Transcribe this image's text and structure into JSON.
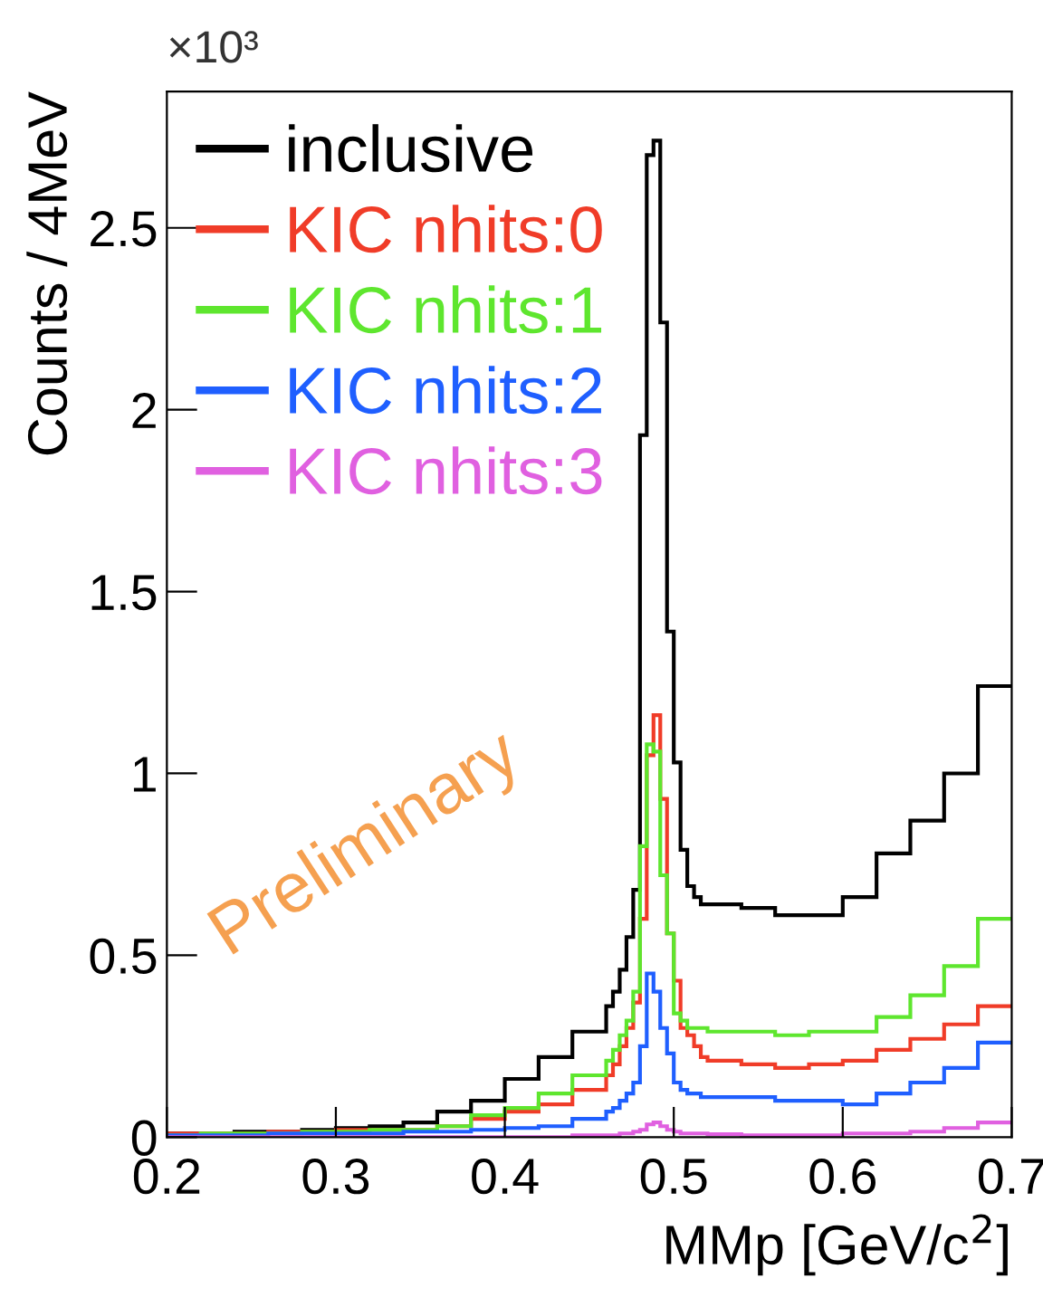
{
  "chart_data": {
    "type": "histogram",
    "xlabel": "MMp [GeV/c$^{2}$]",
    "ylabel": "Counts / 4MeV",
    "annotations": [
      "×10³",
      "Preliminary"
    ],
    "bins": [
      0.2,
      0.22,
      0.24,
      0.26,
      0.28,
      0.3,
      0.32,
      0.34,
      0.36,
      0.38,
      0.4,
      0.42,
      0.44,
      0.46,
      0.464,
      0.468,
      0.472,
      0.476,
      0.48,
      0.484,
      0.488,
      0.492,
      0.496,
      0.5,
      0.504,
      0.508,
      0.512,
      0.516,
      0.52,
      0.54,
      0.56,
      0.58,
      0.6,
      0.62,
      0.64,
      0.66,
      0.68,
      0.7
    ],
    "series": [
      {
        "name": "inclusive",
        "color": "#000000",
        "values": [
          0.01,
          0.01,
          0.015,
          0.015,
          0.02,
          0.025,
          0.03,
          0.04,
          0.07,
          0.1,
          0.16,
          0.22,
          0.29,
          0.36,
          0.4,
          0.46,
          0.55,
          0.68,
          1.93,
          2.7,
          2.74,
          2.24,
          1.39,
          1.03,
          0.79,
          0.69,
          0.66,
          0.64,
          0.64,
          0.63,
          0.61,
          0.61,
          0.66,
          0.78,
          0.87,
          1.0,
          1.24
        ]
      },
      {
        "name": "KIC nhits:0",
        "color": "#f03c28",
        "values": [
          0.01,
          0.01,
          0.01,
          0.015,
          0.015,
          0.02,
          0.02,
          0.02,
          0.03,
          0.05,
          0.07,
          0.09,
          0.13,
          0.17,
          0.2,
          0.25,
          0.3,
          0.37,
          0.6,
          1.05,
          1.16,
          0.93,
          0.56,
          0.43,
          0.3,
          0.28,
          0.25,
          0.22,
          0.21,
          0.2,
          0.19,
          0.2,
          0.21,
          0.24,
          0.27,
          0.31,
          0.36
        ]
      },
      {
        "name": "KIC nhits:1",
        "color": "#5ee62e",
        "values": [
          0.005,
          0.01,
          0.01,
          0.01,
          0.015,
          0.015,
          0.02,
          0.02,
          0.03,
          0.06,
          0.08,
          0.12,
          0.17,
          0.21,
          0.24,
          0.28,
          0.32,
          0.4,
          0.8,
          1.08,
          1.06,
          0.72,
          0.56,
          0.34,
          0.32,
          0.3,
          0.3,
          0.3,
          0.29,
          0.29,
          0.28,
          0.29,
          0.29,
          0.33,
          0.39,
          0.47,
          0.6
        ]
      },
      {
        "name": "KIC nhits:2",
        "color": "#1f5fff",
        "values": [
          0.005,
          0.005,
          0.005,
          0.01,
          0.01,
          0.01,
          0.01,
          0.015,
          0.015,
          0.02,
          0.025,
          0.03,
          0.05,
          0.07,
          0.08,
          0.1,
          0.12,
          0.15,
          0.25,
          0.45,
          0.4,
          0.3,
          0.23,
          0.15,
          0.13,
          0.12,
          0.12,
          0.11,
          0.11,
          0.11,
          0.1,
          0.1,
          0.09,
          0.12,
          0.15,
          0.19,
          0.26
        ]
      },
      {
        "name": "KIC nhits:3",
        "color": "#e060e0",
        "values": [
          0.0,
          0.0,
          0.0,
          0.0,
          0.0,
          0.0,
          0.0,
          0.0,
          0.0,
          0.0,
          0.0,
          0.0,
          0.005,
          0.005,
          0.005,
          0.01,
          0.01,
          0.015,
          0.02,
          0.035,
          0.04,
          0.03,
          0.02,
          0.015,
          0.01,
          0.01,
          0.01,
          0.01,
          0.008,
          0.005,
          0.005,
          0.005,
          0.01,
          0.01,
          0.015,
          0.025,
          0.04
        ]
      }
    ],
    "xlim": [
      0.2,
      0.7
    ],
    "xticks": [
      0.2,
      0.3,
      0.4,
      0.5,
      0.6,
      0.7
    ],
    "ylim": [
      0,
      2.875
    ],
    "yticks": [
      0,
      0.5,
      1,
      1.5,
      2,
      2.5
    ],
    "legend": "top left",
    "grid": false
  }
}
